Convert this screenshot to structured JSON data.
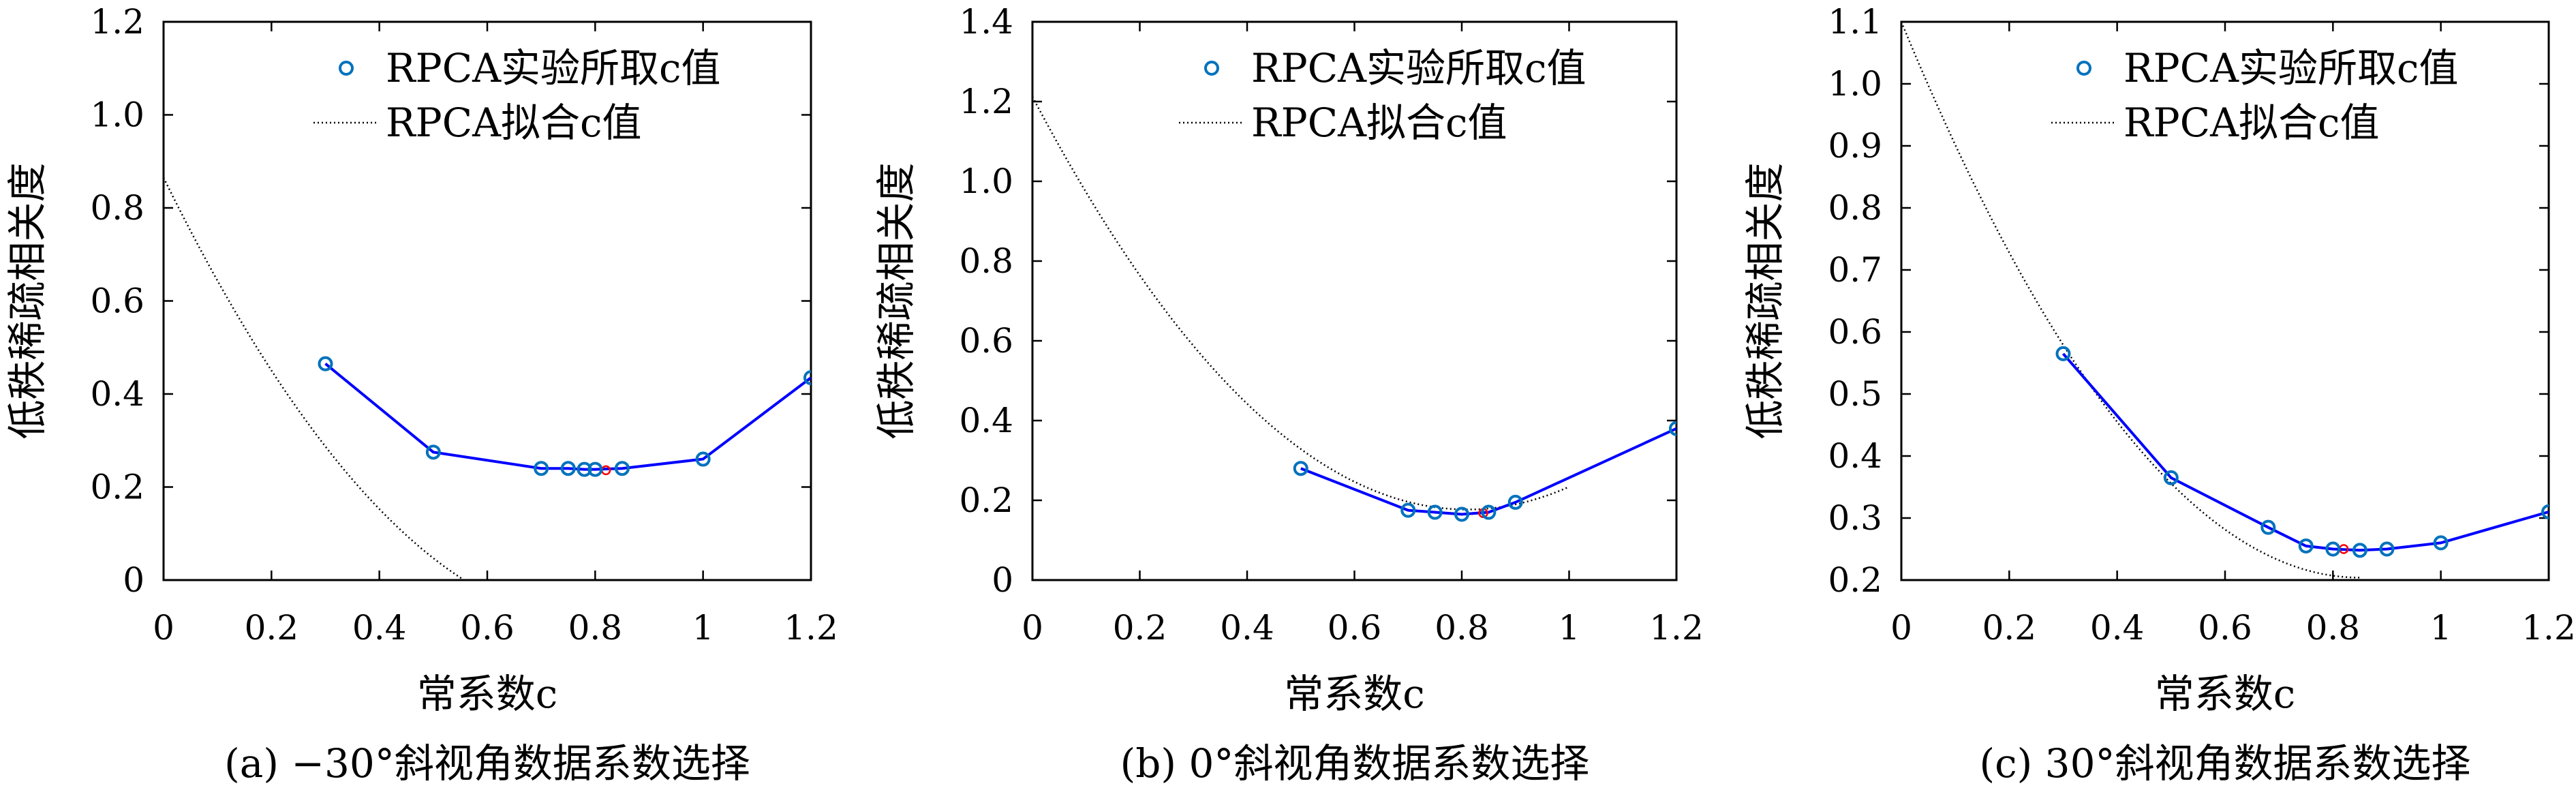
{
  "chart_data": [
    {
      "type": "line",
      "caption": "(a) −30°斜视角数据系数选择",
      "xlabel": "常系数c",
      "ylabel": "低秩稀疏相关度",
      "xlim": [
        0,
        1.2
      ],
      "ylim": [
        0,
        1.2
      ],
      "xticks": [
        0,
        0.2,
        0.4,
        0.6,
        0.8,
        1.0,
        1.2
      ],
      "xtick_labels": [
        "0",
        "0.2",
        "0.4",
        "0.6",
        "0.8",
        "1",
        "1.2"
      ],
      "yticks": [
        0,
        0.2,
        0.4,
        0.6,
        0.8,
        1.0,
        1.2
      ],
      "ytick_labels": [
        "0",
        "0.2",
        "0.4",
        "0.6",
        "0.8",
        "1.0",
        "1.2"
      ],
      "legend": {
        "position": "top-right",
        "entries": [
          "RPCA实验所取c值",
          "RPCA拟合c值"
        ]
      },
      "series": [
        {
          "name": "RPCA实验所取c值",
          "style": "markers+line",
          "color": "#0000ff",
          "marker_color": "#0072bd",
          "x": [
            0.3,
            0.5,
            0.7,
            0.75,
            0.78,
            0.8,
            0.85,
            1.0,
            1.2
          ],
          "y": [
            0.465,
            0.275,
            0.24,
            0.24,
            0.238,
            0.238,
            0.24,
            0.26,
            0.435
          ]
        },
        {
          "name": "RPCA拟合c值",
          "style": "dotted",
          "color": "#000000",
          "coeffs": [
            1.4541,
            -2.3629,
            0.8651
          ],
          "xrange": [
            0,
            1.0
          ]
        }
      ],
      "optimum": {
        "x": 0.82,
        "y": 0.236,
        "color": "#ff0000"
      }
    },
    {
      "type": "line",
      "caption": "(b) 0°斜视角数据系数选择",
      "xlabel": "常系数c",
      "ylabel": "低秩稀疏相关度",
      "xlim": [
        0,
        1.2
      ],
      "ylim": [
        0,
        1.4
      ],
      "xticks": [
        0,
        0.2,
        0.4,
        0.6,
        0.8,
        1.0,
        1.2
      ],
      "xtick_labels": [
        "0",
        "0.2",
        "0.4",
        "0.6",
        "0.8",
        "1",
        "1.2"
      ],
      "yticks": [
        0,
        0.2,
        0.4,
        0.6,
        0.8,
        1.0,
        1.2,
        1.4
      ],
      "ytick_labels": [
        "0",
        "0.2",
        "0.4",
        "0.6",
        "0.8",
        "1.0",
        "1.2",
        "1.4"
      ],
      "legend": {
        "position": "top-right",
        "entries": [
          "RPCA实验所取c值",
          "RPCA拟合c值"
        ]
      },
      "series": [
        {
          "name": "RPCA实验所取c值",
          "style": "markers+line",
          "color": "#0000ff",
          "marker_color": "#0072bd",
          "x": [
            0.5,
            0.7,
            0.75,
            0.8,
            0.85,
            0.9,
            1.2
          ],
          "y": [
            0.28,
            0.175,
            0.17,
            0.165,
            0.17,
            0.195,
            0.38
          ]
        },
        {
          "name": "RPCA拟合c值",
          "style": "dotted",
          "color": "#000000",
          "coeffs": [
            1.5781,
            -2.5563,
            1.2122
          ],
          "xrange": [
            0,
            1.0
          ]
        }
      ],
      "optimum": {
        "x": 0.84,
        "y": 0.168,
        "color": "#ff0000"
      }
    },
    {
      "type": "line",
      "caption": "(c) 30°斜视角数据系数选择",
      "xlabel": "常系数c",
      "ylabel": "低秩稀疏相关度",
      "xlim": [
        0,
        1.2
      ],
      "ylim": [
        0.2,
        1.1
      ],
      "xticks": [
        0,
        0.2,
        0.4,
        0.6,
        0.8,
        1.0,
        1.2
      ],
      "xtick_labels": [
        "0",
        "0.2",
        "0.4",
        "0.6",
        "0.8",
        "1",
        "1.2"
      ],
      "yticks": [
        0.2,
        0.3,
        0.4,
        0.5,
        0.6,
        0.7,
        0.8,
        0.9,
        1.0,
        1.1
      ],
      "ytick_labels": [
        "0.2",
        "0.3",
        "0.4",
        "0.5",
        "0.6",
        "0.7",
        "0.8",
        "0.9",
        "1.0",
        "1.1"
      ],
      "legend": {
        "position": "top-right",
        "entries": [
          "RPCA实验所取c值",
          "RPCA拟合c值"
        ]
      },
      "series": [
        {
          "name": "RPCA实验所取c值",
          "style": "markers+line",
          "color": "#0000ff",
          "marker_color": "#0072bd",
          "x": [
            0.3,
            0.5,
            0.68,
            0.75,
            0.8,
            0.85,
            0.9,
            1.0,
            1.2
          ],
          "y": [
            0.565,
            0.365,
            0.285,
            0.255,
            0.25,
            0.248,
            0.25,
            0.26,
            0.31
          ]
        },
        {
          "name": "RPCA拟合c值",
          "style": "dotted",
          "color": "#000000",
          "coeffs": [
            1.2401,
            -2.1083,
            1.1
          ],
          "xrange": [
            0,
            0.85
          ]
        }
      ],
      "optimum": {
        "x": 0.82,
        "y": 0.25,
        "color": "#ff0000"
      }
    }
  ]
}
